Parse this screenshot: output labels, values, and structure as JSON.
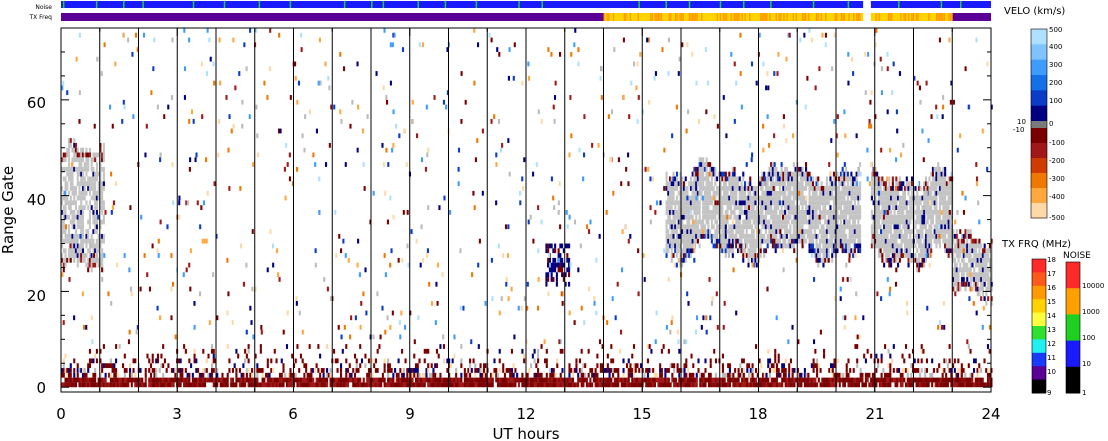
{
  "chart_data": {
    "type": "heatmap",
    "title": "",
    "xlabel": "UT hours",
    "ylabel": "Range Gate",
    "xlim": [
      0,
      24
    ],
    "ylim": [
      -1,
      75
    ],
    "x_ticks": [
      "0",
      "3",
      "6",
      "9",
      "12",
      "15",
      "18",
      "21",
      "24"
    ],
    "y_ticks": [
      "0",
      "20",
      "40",
      "60"
    ],
    "vertical_gridlines": "hourly",
    "strip_labels": [
      "Noise",
      "TX Freq"
    ],
    "noise_strip": [
      {
        "start": 0,
        "end": 20.7,
        "color": "#1a1aff"
      },
      {
        "start": 20.9,
        "end": 24,
        "color": "#1a1aff"
      }
    ],
    "noise_spikes": [
      0.05,
      0.9,
      1.6,
      2.1,
      3.4,
      4.2,
      5.1,
      5.9,
      7.3,
      8.0,
      8.3,
      9.2,
      9.9,
      10.7,
      11.8,
      12.4,
      14.9,
      15.6,
      16.2,
      17.0,
      17.6,
      18.3,
      19.4,
      20.3,
      21.6,
      22.7,
      23.2
    ],
    "txfreq_strip": [
      {
        "start": 0,
        "end": 14.0,
        "color": "#5a0096"
      },
      {
        "start": 14.0,
        "end": 20.7,
        "color": "#ffd400"
      },
      {
        "start": 20.9,
        "end": 23.0,
        "color": "#ffd400"
      },
      {
        "start": 23.0,
        "end": 24,
        "color": "#5a0096"
      }
    ],
    "velocity_colorbar": {
      "title": "VELO (km/s)",
      "labels": [
        "500",
        "400",
        "300",
        "200",
        "100",
        "0",
        "10",
        "-10",
        "-100",
        "-200",
        "-300",
        "-400",
        "-500"
      ],
      "positive_colors": [
        "#aee0ff",
        "#7fc4ff",
        "#3f9cff",
        "#1470e6",
        "#0a3cc8",
        "#000080"
      ],
      "negative_colors": [
        "#7a0000",
        "#a01818",
        "#d03c00",
        "#f07800",
        "#ffa840",
        "#ffd8a8"
      ]
    },
    "txfreq_colorbar": {
      "title": "TX FRQ (MHz)",
      "labels": [
        "18",
        "17",
        "16",
        "15",
        "14",
        "13",
        "12",
        "11",
        "10",
        "9"
      ],
      "colors": [
        "#ff2a2a",
        "#ff5a1a",
        "#ff9a00",
        "#ffd200",
        "#ffff40",
        "#30e030",
        "#20f0f0",
        "#1a3aff",
        "#5a0096",
        "#000000"
      ]
    },
    "noise_colorbar": {
      "title": "NOISE",
      "labels": [
        "10000",
        "1000",
        "100",
        "10",
        "1"
      ],
      "colors": [
        "#ff2a2a",
        "#ffa000",
        "#20d020",
        "#1a1aff",
        "#000000"
      ]
    },
    "scatter_regions": [
      {
        "label": "ground scatter",
        "t_start": 15.6,
        "t_end": 20.6,
        "gate_low": 26,
        "gate_high": 46
      },
      {
        "label": "ground scatter",
        "t_start": 20.9,
        "t_end": 23.0,
        "gate_low": 26,
        "gate_high": 45
      },
      {
        "label": "ground scatter",
        "t_start": 23.0,
        "t_end": 24.0,
        "gate_low": 19,
        "gate_high": 33
      },
      {
        "label": "near range",
        "t_start": 0.0,
        "t_end": 24.0,
        "gate_low": 0,
        "gate_high": 2
      },
      {
        "label": "near range",
        "t_start": 0.0,
        "t_end": 24.0,
        "gate_low": 2,
        "gate_high": 9
      },
      {
        "label": "early echo",
        "t_start": 0.0,
        "t_end": 1.1,
        "gate_low": 22,
        "gate_high": 50
      }
    ]
  }
}
